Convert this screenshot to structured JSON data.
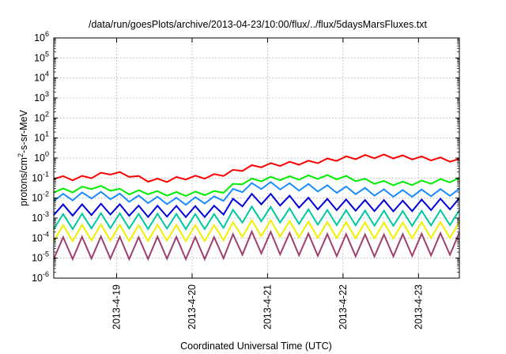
{
  "chart_data": {
    "type": "line",
    "title": "/data/run/goesPlots/archive/2013-04-23/10:00/flux/../flux/5daysMarsFluxes.txt",
    "xlabel": "Coordinated Universal Time (UTC)",
    "ylabel": {
      "prefix": "protons/cm",
      "sup": "2",
      "suffix": "-s-sr-MeV"
    },
    "yscale": "log",
    "ylim": [
      -6,
      6
    ],
    "y_ticks": [
      -6,
      -5,
      -4,
      -3,
      -2,
      -1,
      0,
      1,
      2,
      3,
      4,
      5,
      6
    ],
    "x_units": "days",
    "xlim": [
      "2013-04-18T04:00",
      "2013-04-23T13:00"
    ],
    "x_ticks": [
      "2013-4-19",
      "2013-4-20",
      "2013-4-21",
      "2013-4-22",
      "2013-4-23"
    ],
    "grid": true,
    "sample_interval_hours": 3,
    "series": [
      {
        "color": "#ff0000",
        "low_log10": [
          -1.05,
          -1.12,
          -1.02,
          -0.82,
          -0.92,
          -1.18,
          -1.22,
          -1.08,
          -1.05,
          -0.95,
          -0.7,
          -0.48,
          -0.42,
          -0.35,
          -0.3,
          -0.18,
          -0.08,
          -0.02,
          0.0,
          -0.05,
          -0.1,
          -0.15,
          -0.22
        ],
        "amp": 0.18
      },
      {
        "color": "#00ee00",
        "low_log10": [
          -1.72,
          -1.72,
          -1.55,
          -1.62,
          -1.82,
          -1.8,
          -1.88,
          -1.9,
          -1.86,
          -1.84,
          -1.35,
          -1.18,
          -1.12,
          -1.1,
          -1.05,
          -1.05,
          -1.1,
          -1.25,
          -1.35,
          -1.38,
          -1.32,
          -1.25,
          -1.18
        ],
        "amp": 0.2
      },
      {
        "color": "#1a8cff",
        "low_log10": [
          -2.15,
          -2.12,
          -2.02,
          -2.05,
          -2.18,
          -2.25,
          -2.3,
          -2.35,
          -2.28,
          -2.25,
          -1.75,
          -1.55,
          -1.55,
          -1.62,
          -1.65,
          -1.72,
          -1.78,
          -1.85,
          -1.92,
          -1.95,
          -1.92,
          -1.9,
          -1.88
        ],
        "amp": 0.35
      },
      {
        "color": "#0000dd",
        "low_log10": [
          -2.85,
          -2.88,
          -2.85,
          -2.82,
          -2.88,
          -2.95,
          -2.92,
          -2.95,
          -2.95,
          -2.92,
          -2.45,
          -2.3,
          -2.35,
          -2.45,
          -2.55,
          -2.6,
          -2.62,
          -2.65,
          -2.65,
          -2.68,
          -2.62,
          -2.58,
          -2.55
        ],
        "amp": 0.55
      },
      {
        "color": "#00c8a0",
        "low_log10": [
          -3.55,
          -3.55,
          -3.52,
          -3.5,
          -3.52,
          -3.55,
          -3.52,
          -3.55,
          -3.55,
          -3.55,
          -3.25,
          -3.15,
          -3.2,
          -3.28,
          -3.32,
          -3.35,
          -3.35,
          -3.38,
          -3.38,
          -3.4,
          -3.38,
          -3.35,
          -3.35
        ],
        "amp": 0.75
      },
      {
        "color": "#f0f000",
        "low_log10": [
          -4.15,
          -4.15,
          -4.12,
          -4.12,
          -4.15,
          -4.15,
          -4.12,
          -4.15,
          -4.15,
          -4.15,
          -3.95,
          -3.9,
          -3.92,
          -3.95,
          -3.98,
          -4.0,
          -4.0,
          -4.02,
          -4.02,
          -4.02,
          -4.0,
          -4.0,
          -3.98
        ],
        "amp": 0.8
      },
      {
        "color": "#a04070",
        "low_log10": [
          -5.05,
          -5.05,
          -5.02,
          -5.02,
          -5.05,
          -5.05,
          -5.02,
          -5.05,
          -5.05,
          -5.05,
          -4.85,
          -4.75,
          -4.8,
          -4.85,
          -4.88,
          -4.9,
          -4.9,
          -4.92,
          -4.92,
          -4.9,
          -4.88,
          -4.85,
          -4.82
        ],
        "amp": 1.1
      }
    ]
  }
}
